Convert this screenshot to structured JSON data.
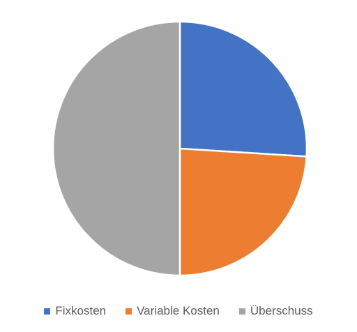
{
  "chart_data": {
    "type": "pie",
    "title": "",
    "categories": [
      "Fixkosten",
      "Variable Kosten",
      "Überschuss"
    ],
    "values": [
      26,
      24,
      50
    ],
    "colors": [
      "#4472C4",
      "#ED7D31",
      "#A5A5A5"
    ],
    "start_angle": "12 o'clock, clockwise",
    "legend_position": "bottom"
  }
}
